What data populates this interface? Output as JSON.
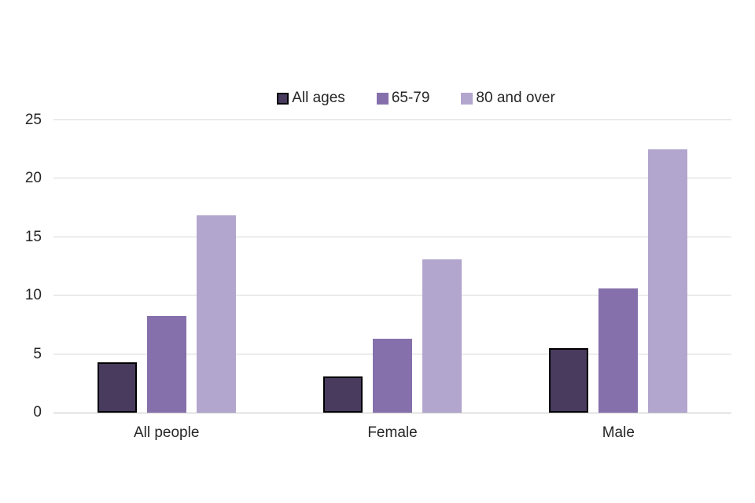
{
  "chart_data": {
    "type": "bar",
    "title": "",
    "xlabel": "",
    "ylabel": "",
    "categories": [
      "All people",
      "Female",
      "Male"
    ],
    "series": [
      {
        "name": "All ages",
        "values": [
          4.3,
          3.1,
          5.5
        ],
        "color": "#483B5E",
        "border_color": "#000000"
      },
      {
        "name": "65-79",
        "values": [
          8.3,
          6.3,
          10.6
        ],
        "color": "#8570AB",
        "border_color": ""
      },
      {
        "name": "80 and over",
        "values": [
          16.9,
          13.1,
          22.5
        ],
        "color": "#B3A6CE",
        "border_color": ""
      }
    ],
    "ylim": [
      0,
      25
    ],
    "ytick_step": 5,
    "ytick_labels": [
      "0",
      "5",
      "10",
      "15",
      "20",
      "25"
    ],
    "grid": true,
    "legend_position": "top-center"
  },
  "colors": {
    "background": "#ffffff",
    "gridline": "#d9d9d9",
    "axis_line": "#c4c4c4",
    "text": "#262626"
  }
}
